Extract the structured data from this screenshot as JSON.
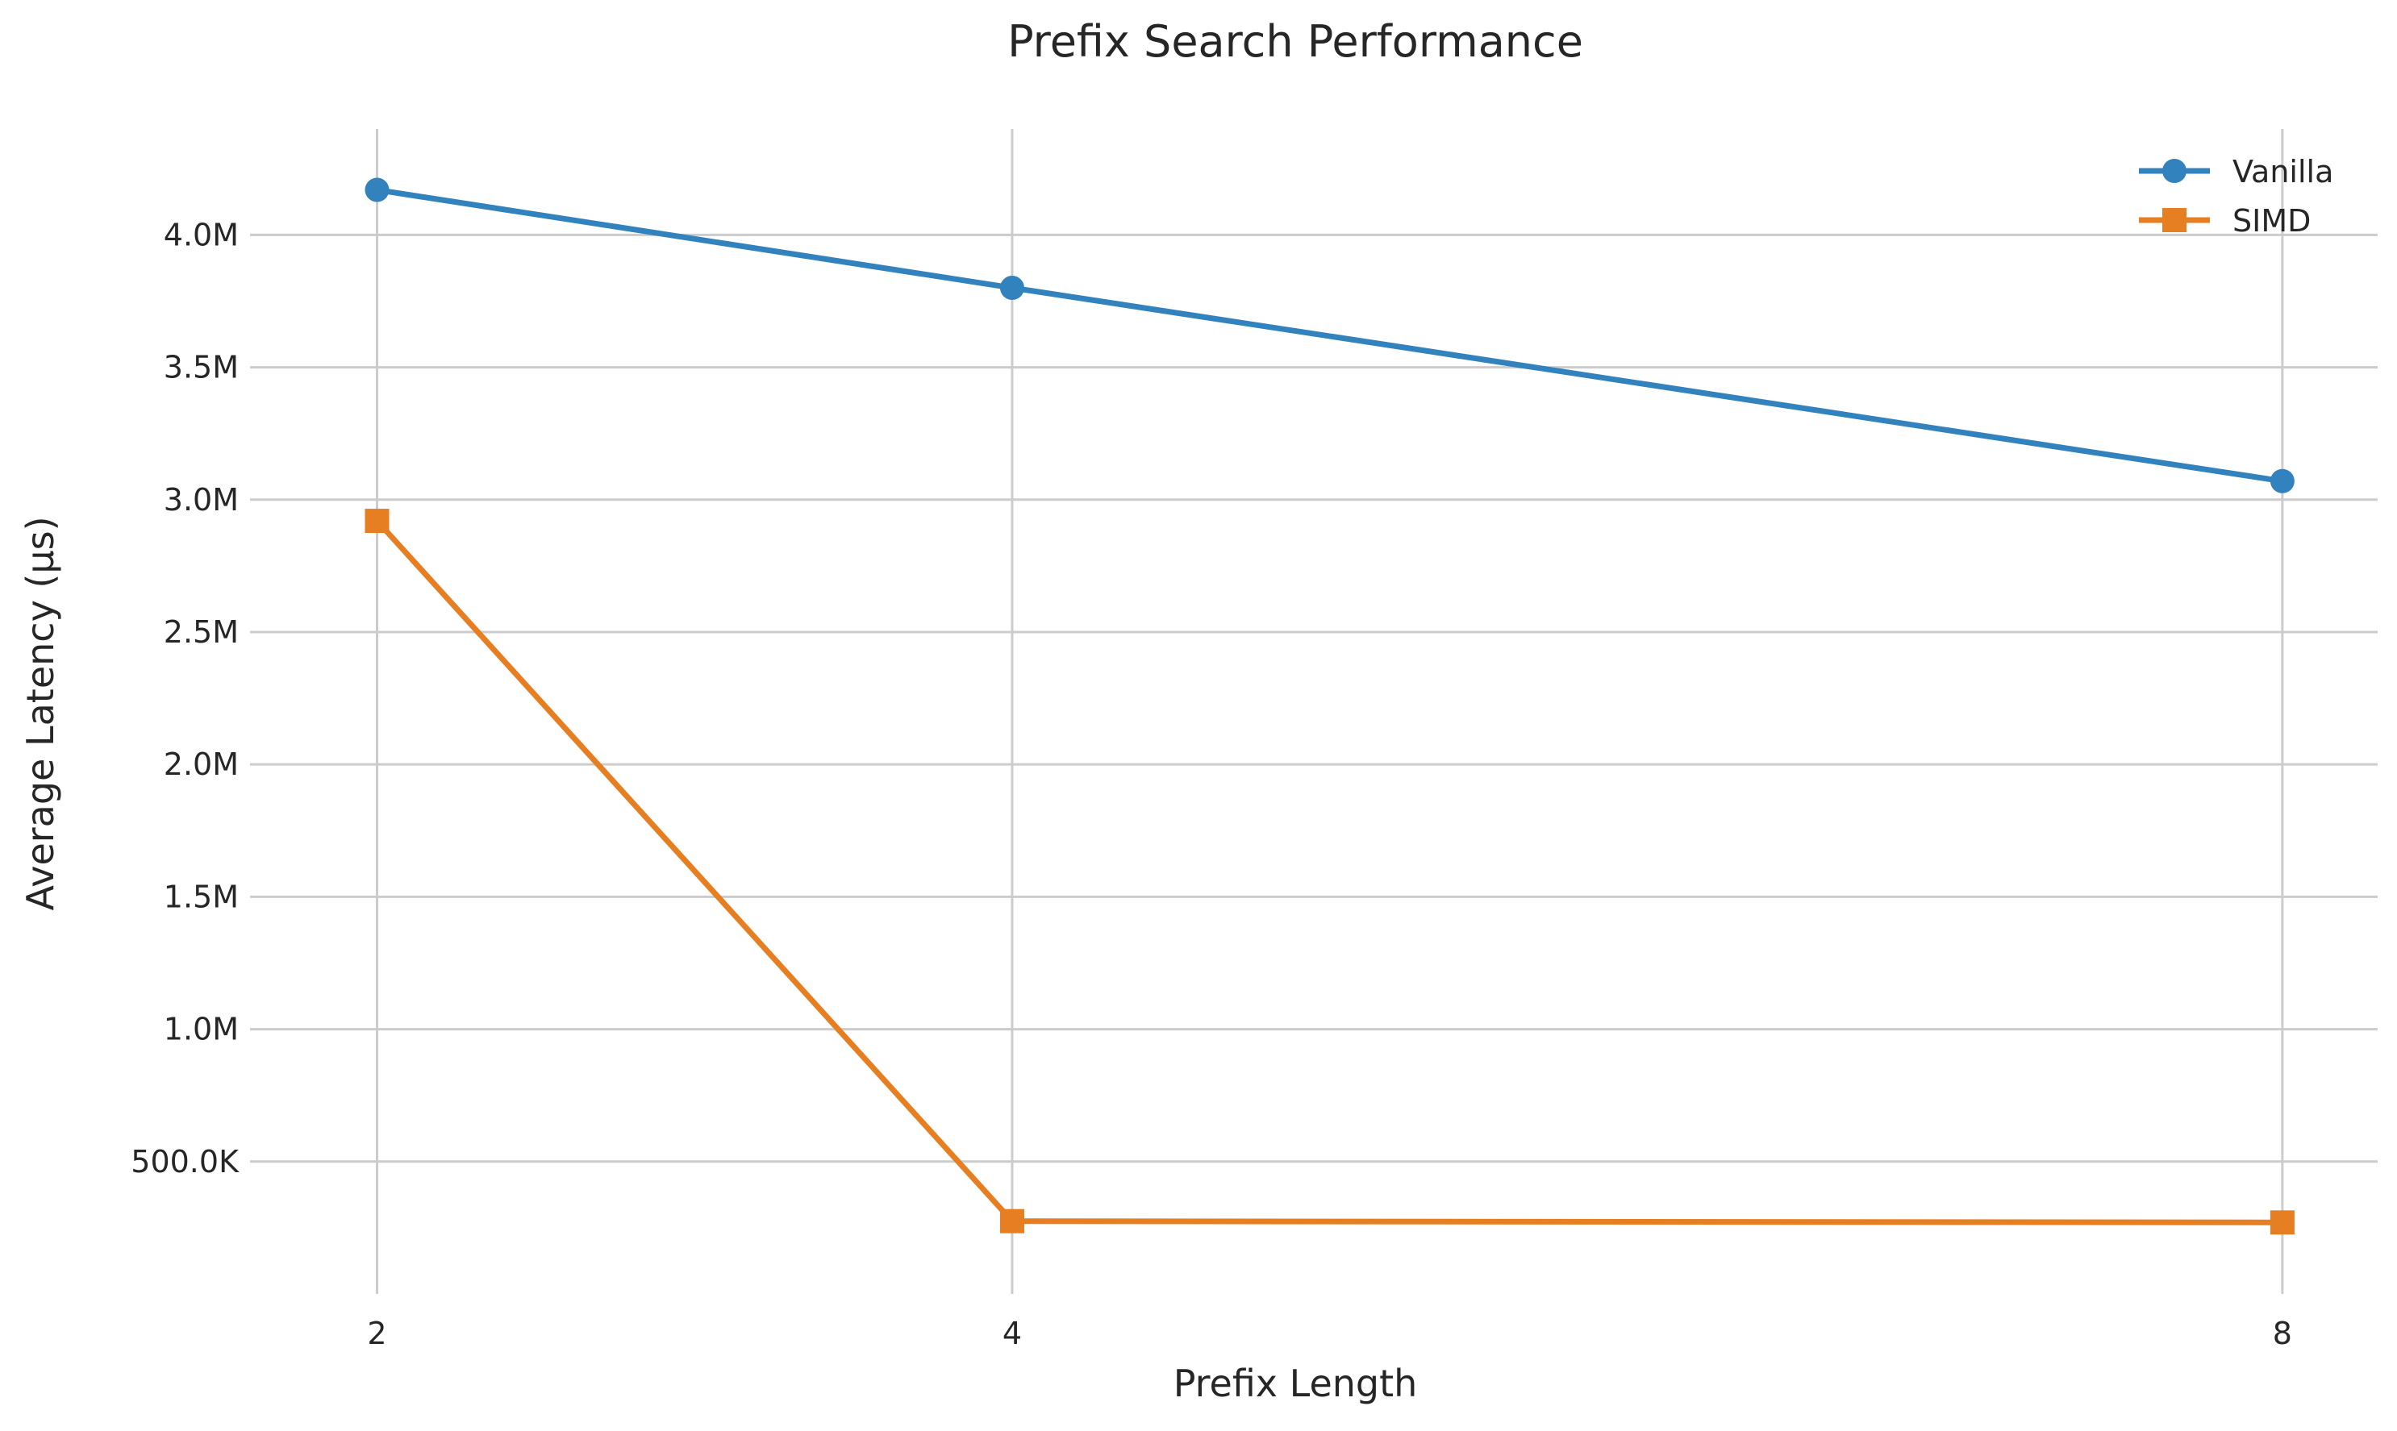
{
  "chart_data": {
    "type": "line",
    "title": "Prefix Search Performance",
    "xlabel": "Prefix Length",
    "ylabel": "Average Latency (µs)",
    "x": [
      2,
      4,
      8
    ],
    "x_ticks": [
      2,
      4,
      8
    ],
    "x_tick_labels": [
      "2",
      "4",
      "8"
    ],
    "xlim": [
      1.6,
      8.3
    ],
    "ylim": [
      0,
      4.4
    ],
    "y_ticks": [
      0.5,
      1.0,
      1.5,
      2.0,
      2.5,
      3.0,
      3.5,
      4.0
    ],
    "y_tick_labels": [
      "500.0K",
      "1.0M",
      "1.5M",
      "2.0M",
      "2.5M",
      "3.0M",
      "3.5M",
      "4.0M"
    ],
    "y_unit_note": "values in millions",
    "grid": true,
    "legend_position": "top-right",
    "series": [
      {
        "name": "Vanilla",
        "color": "#3182bd",
        "marker": "circle",
        "values": [
          4.17,
          3.8,
          3.07
        ]
      },
      {
        "name": "SIMD",
        "color": "#e67e22",
        "marker": "square",
        "values": [
          2.92,
          0.275,
          0.27
        ]
      }
    ]
  }
}
